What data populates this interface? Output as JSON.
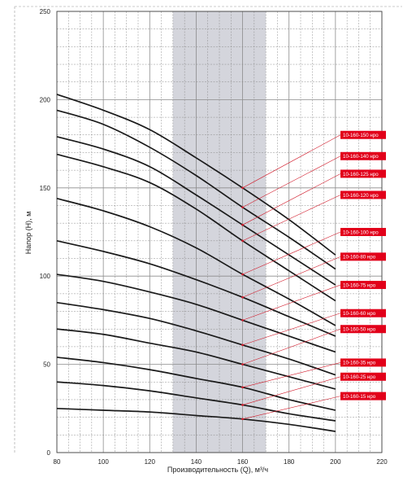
{
  "chart_data": {
    "type": "line",
    "title": "",
    "xlabel": "Производительность (Q), м³/ч",
    "ylabel": "Напор (H), м",
    "xlim": [
      80,
      220
    ],
    "ylim": [
      0,
      250
    ],
    "x_ticks": [
      "80",
      "100",
      "120",
      "140",
      "160",
      "180",
      "200",
      "220"
    ],
    "y_ticks": [
      "0",
      "50",
      "100",
      "150",
      "200",
      "250"
    ],
    "grid": true,
    "highlight_band_x": [
      130,
      170
    ],
    "marker_x": 160,
    "colors": {
      "curve": "#1a1a1a",
      "label_bg": "#e2001a",
      "label_text": "#ffffff",
      "leader": "#d11a2a",
      "band": "#c9cbd3",
      "grid": "#8c8c8c"
    },
    "series": [
      {
        "name": "10-160-150 нро",
        "x": [
          80,
          100,
          120,
          140,
          160,
          180,
          200
        ],
        "y": [
          203,
          194,
          183,
          167,
          150,
          132,
          112
        ]
      },
      {
        "name": "10-160-140 нро",
        "x": [
          80,
          100,
          120,
          140,
          160,
          180,
          200
        ],
        "y": [
          194,
          186,
          173,
          157,
          139,
          122,
          104
        ]
      },
      {
        "name": "10-160-125 нро",
        "x": [
          80,
          100,
          120,
          140,
          160,
          180,
          200
        ],
        "y": [
          179,
          172,
          162,
          146,
          129,
          112,
          95
        ]
      },
      {
        "name": "10-160-120 нро",
        "x": [
          80,
          100,
          120,
          140,
          160,
          180,
          200
        ],
        "y": [
          169,
          162,
          153,
          138,
          120,
          103,
          86
        ]
      },
      {
        "name": "10-160-100 нро",
        "x": [
          80,
          100,
          120,
          140,
          160,
          180,
          200
        ],
        "y": [
          144,
          137,
          128,
          116,
          101,
          87,
          72
        ]
      },
      {
        "name": "10-160-80 нро",
        "x": [
          80,
          100,
          120,
          140,
          160,
          180,
          200
        ],
        "y": [
          120,
          114,
          107,
          98,
          88,
          77,
          66
        ]
      },
      {
        "name": "10-160-75 нро",
        "x": [
          80,
          100,
          120,
          140,
          160,
          180,
          200
        ],
        "y": [
          101,
          97,
          91,
          84,
          75,
          66,
          57
        ]
      },
      {
        "name": "10-160-60 нро",
        "x": [
          80,
          100,
          120,
          140,
          160,
          180,
          200
        ],
        "y": [
          85,
          81,
          76,
          69,
          61,
          53,
          44
        ]
      },
      {
        "name": "10-160-50 нро",
        "x": [
          80,
          100,
          120,
          140,
          160,
          180,
          200
        ],
        "y": [
          70,
          67,
          62,
          57,
          50,
          43,
          36
        ]
      },
      {
        "name": "10-160-35 нро",
        "x": [
          80,
          100,
          120,
          140,
          160,
          180,
          200
        ],
        "y": [
          54,
          51,
          47,
          42,
          37,
          30,
          24
        ]
      },
      {
        "name": "10-160-25 нро",
        "x": [
          80,
          100,
          120,
          140,
          160,
          180,
          200
        ],
        "y": [
          40,
          38,
          35,
          31,
          27,
          22,
          18
        ]
      },
      {
        "name": "10-160-15 нро",
        "x": [
          80,
          100,
          120,
          140,
          160,
          180,
          200
        ],
        "y": [
          25,
          24,
          23,
          21,
          19,
          16,
          12
        ]
      }
    ],
    "label_anchor_y": [
      180,
      168,
      158,
      146,
      125,
      111,
      95,
      79,
      70,
      51,
      43,
      32
    ]
  }
}
